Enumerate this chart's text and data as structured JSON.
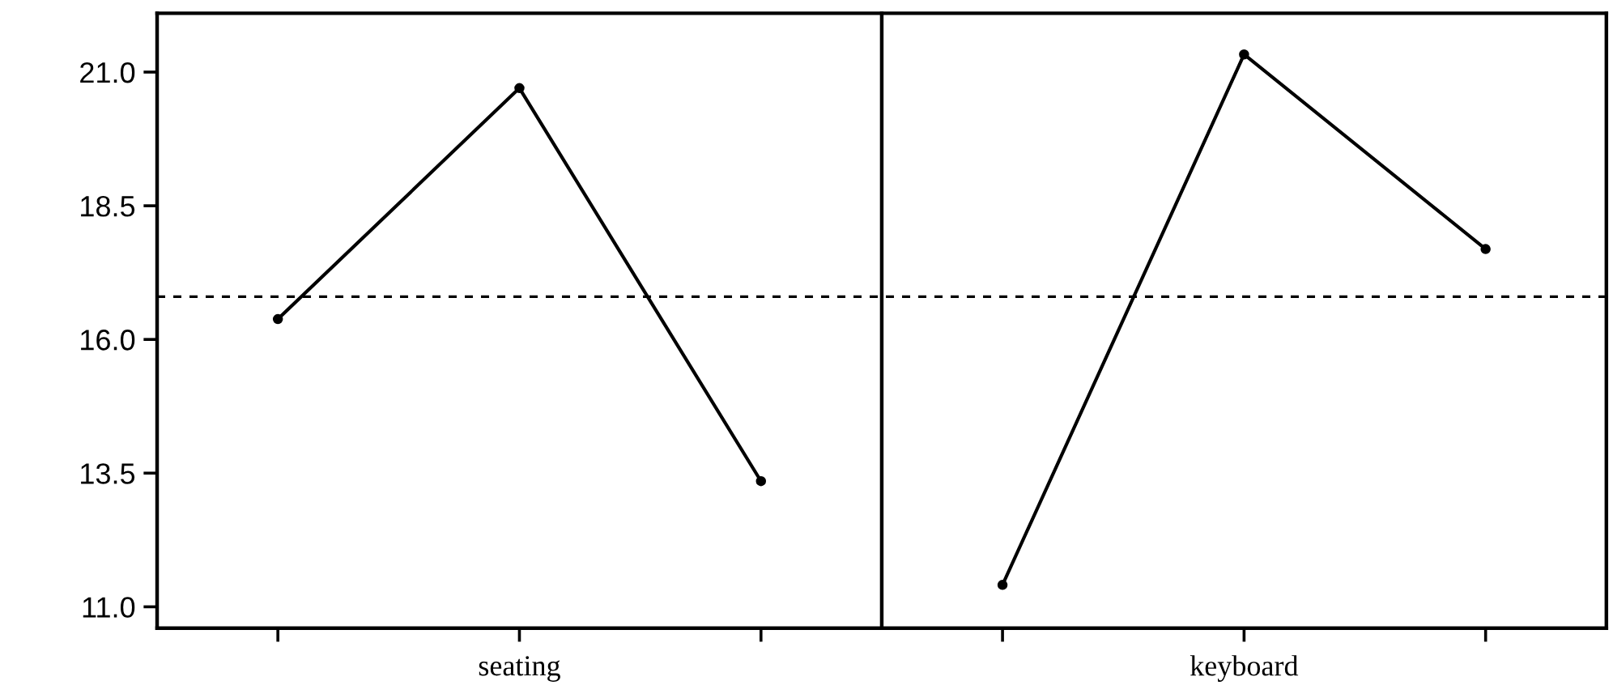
{
  "chart_data": {
    "type": "line",
    "categories": [
      null,
      null,
      null,
      null,
      null,
      null
    ],
    "series": [
      {
        "color": "#000000",
        "values": [
          16.38,
          20.7,
          13.35,
          null,
          null,
          null
        ]
      },
      {
        "color": "#000000",
        "values": [
          null,
          null,
          null,
          11.41,
          21.33,
          17.69
        ]
      }
    ],
    "ylim": [
      10.6,
      22.1
    ],
    "yticks": [
      {
        "value": 21,
        "label": "21.0"
      },
      {
        "value": 18.5,
        "label": "18.5"
      },
      {
        "value": 16,
        "label": "16.0"
      },
      {
        "value": 13.5,
        "label": "13.5"
      },
      {
        "value": 11,
        "label": "11.0"
      }
    ],
    "ref_lines": [
      {
        "axis": "y",
        "value": 16.8,
        "line_style": "dashed",
        "color": "#000000"
      }
    ],
    "annotations": [
      "seating",
      "keyboard"
    ],
    "marker": "circle",
    "line_style": "solid",
    "grid": false,
    "legend": false,
    "tick_labels": "y"
  }
}
